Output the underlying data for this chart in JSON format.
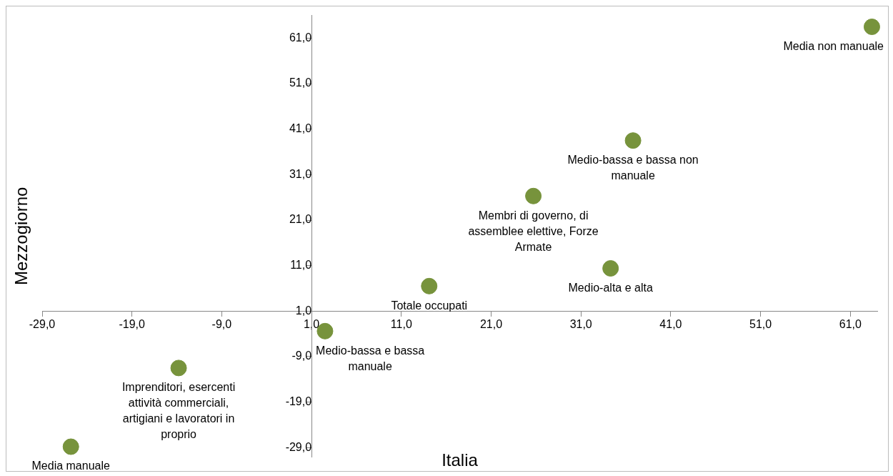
{
  "chart_data": {
    "type": "scatter",
    "xlabel": "Italia",
    "ylabel": "Mezzogiorno",
    "x": [
      63.4,
      36.8,
      25.7,
      34.3,
      14.1,
      2.5,
      -13.8,
      -25.8
    ],
    "values": [
      63.5,
      38.5,
      26.3,
      10.4,
      6.5,
      -3.4,
      -11.5,
      -28.8
    ],
    "color": "#77933c",
    "marker": "circle",
    "grid": false,
    "legend": false,
    "xlim": [
      -29,
      64
    ],
    "ylim": [
      -31,
      66
    ],
    "xticks": [
      {
        "value": -29,
        "label": "-29,0"
      },
      {
        "value": -19,
        "label": "-19,0"
      },
      {
        "value": -9,
        "label": "-9,0"
      },
      {
        "value": 1,
        "label": "1,0"
      },
      {
        "value": 11,
        "label": "11,0"
      },
      {
        "value": 21,
        "label": "21,0"
      },
      {
        "value": 31,
        "label": "31,0"
      },
      {
        "value": 41,
        "label": "41,0"
      },
      {
        "value": 51,
        "label": "51,0"
      },
      {
        "value": 61,
        "label": "61,0"
      }
    ],
    "yticks": [
      {
        "value": -29,
        "label": "-29,0"
      },
      {
        "value": -19,
        "label": "-19,0"
      },
      {
        "value": -9,
        "label": "-9,0"
      },
      {
        "value": 1,
        "label": "1,0"
      },
      {
        "value": 11,
        "label": "11,0"
      },
      {
        "value": 21,
        "label": "21,0"
      },
      {
        "value": 31,
        "label": "31,0"
      },
      {
        "value": 41,
        "label": "41,0"
      },
      {
        "value": 51,
        "label": "51,0"
      },
      {
        "value": 61,
        "label": "61,0"
      }
    ],
    "annotations": [
      {
        "text": "Media non manuale",
        "x": 63.4,
        "y": 63.5
      },
      {
        "text": "Medio-bassa e bassa non manuale",
        "x": 36.8,
        "y": 38.5
      },
      {
        "text": "Membri di governo, di assemblee elettive, Forze Armate",
        "x": 25.7,
        "y": 26.3
      },
      {
        "text": "Medio-alta e alta",
        "x": 34.3,
        "y": 10.4
      },
      {
        "text": "Totale occupati",
        "x": 14.1,
        "y": 6.5
      },
      {
        "text": "Medio-bassa e bassa manuale",
        "x": 2.5,
        "y": -3.4
      },
      {
        "text": "Imprenditori, esercenti attività commerciali, artigiani e lavoratori in proprio",
        "x": -13.8,
        "y": -11.5
      },
      {
        "text": "Media manuale",
        "x": -25.8,
        "y": -28.8
      }
    ]
  }
}
